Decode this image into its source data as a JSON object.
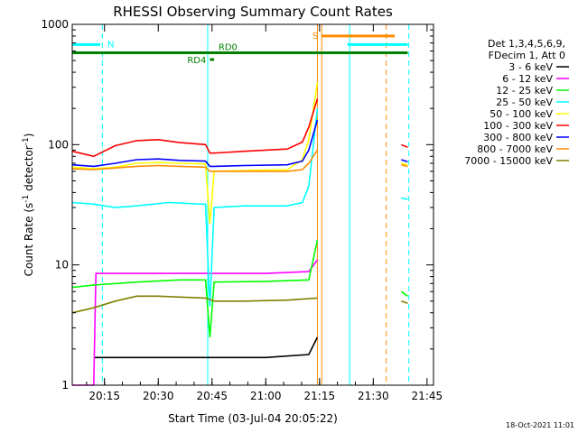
{
  "chart_data": {
    "type": "line",
    "title": "RHESSI Observing Summary Count Rates",
    "xlabel": "Start Time (03-Jul-04 20:05:22)",
    "ylabel_main": "Count Rate (s",
    "ylabel_exp1": "-1",
    "ylabel_mid": " detector",
    "ylabel_exp2": "-1",
    "ylabel_end": ")",
    "y_scale": "log",
    "ylim": [
      1,
      1000
    ],
    "xlim_minutes": [
      20.1,
      21.78
    ],
    "x_ticks": [
      {
        "label": "20:15",
        "t": 20.25
      },
      {
        "label": "20:30",
        "t": 20.5
      },
      {
        "label": "20:45",
        "t": 20.75
      },
      {
        "label": "21:00",
        "t": 21.0
      },
      {
        "label": "21:15",
        "t": 21.25
      },
      {
        "label": "21:30",
        "t": 21.5
      },
      {
        "label": "21:45",
        "t": 21.75
      }
    ],
    "y_ticks": [
      {
        "label": "1",
        "v": 1
      },
      {
        "label": "10",
        "v": 10
      },
      {
        "label": "100",
        "v": 100
      },
      {
        "label": "1000",
        "v": 1000
      }
    ],
    "legend_header": [
      "Det 1,3,4,5,6,9,",
      "FDecim 1, Att 0"
    ],
    "legend_placement": "right",
    "series": [
      {
        "name": "3 - 6 keV",
        "color": "#000000",
        "points": [
          [
            20.2,
            1.7
          ],
          [
            20.4,
            1.7
          ],
          [
            20.6,
            1.7
          ],
          [
            20.8,
            1.7
          ],
          [
            21.0,
            1.7
          ],
          [
            21.2,
            1.8
          ],
          [
            21.24,
            2.5
          ]
        ],
        "after_gap": [
          [
            21.63,
            null
          ]
        ]
      },
      {
        "name": "6 - 12 keV",
        "color": "#ff00ff",
        "points": [
          [
            20.1,
            1
          ],
          [
            20.18,
            1
          ],
          [
            20.2,
            1
          ],
          [
            20.21,
            8.5
          ],
          [
            20.4,
            8.5
          ],
          [
            20.6,
            8.5
          ],
          [
            20.8,
            8.5
          ],
          [
            21.0,
            8.5
          ],
          [
            21.2,
            8.8
          ],
          [
            21.24,
            11
          ]
        ],
        "after_gap": [
          [
            21.63,
            null
          ]
        ]
      },
      {
        "name": "12 - 25 keV",
        "color": "#00ff00",
        "points": [
          [
            20.1,
            6.5
          ],
          [
            20.2,
            6.8
          ],
          [
            20.4,
            7.2
          ],
          [
            20.6,
            7.5
          ],
          [
            20.72,
            7.5
          ],
          [
            20.74,
            2.5
          ],
          [
            20.76,
            7.2
          ],
          [
            21.0,
            7.3
          ],
          [
            21.2,
            7.5
          ],
          [
            21.24,
            16
          ]
        ],
        "after_gap": [
          [
            21.63,
            6.0
          ],
          [
            21.66,
            5.5
          ]
        ]
      },
      {
        "name": "25 - 50 keV",
        "color": "#00ffff",
        "points": [
          [
            20.1,
            33
          ],
          [
            20.2,
            32
          ],
          [
            20.3,
            30
          ],
          [
            20.4,
            31
          ],
          [
            20.55,
            33
          ],
          [
            20.7,
            32
          ],
          [
            20.72,
            32
          ],
          [
            20.74,
            4.5
          ],
          [
            20.76,
            30
          ],
          [
            20.9,
            31
          ],
          [
            21.1,
            31
          ],
          [
            21.17,
            33
          ],
          [
            21.2,
            45
          ],
          [
            21.24,
            200
          ]
        ],
        "after_gap": [
          [
            21.63,
            36
          ],
          [
            21.66,
            35
          ]
        ]
      },
      {
        "name": "50 - 100 keV",
        "color": "#ffff00",
        "points": [
          [
            20.1,
            65
          ],
          [
            20.2,
            63
          ],
          [
            20.3,
            65
          ],
          [
            20.4,
            70
          ],
          [
            20.5,
            71
          ],
          [
            20.6,
            70
          ],
          [
            20.72,
            69
          ],
          [
            20.74,
            22
          ],
          [
            20.76,
            60
          ],
          [
            20.9,
            61
          ],
          [
            21.1,
            62
          ],
          [
            21.17,
            75
          ],
          [
            21.2,
            110
          ],
          [
            21.24,
            330
          ]
        ],
        "after_gap": [
          [
            21.63,
            70
          ],
          [
            21.66,
            68
          ]
        ]
      },
      {
        "name": "100 - 300 keV",
        "color": "#ff0000",
        "points": [
          [
            20.1,
            88
          ],
          [
            20.2,
            80
          ],
          [
            20.3,
            98
          ],
          [
            20.4,
            108
          ],
          [
            20.5,
            110
          ],
          [
            20.6,
            104
          ],
          [
            20.72,
            100
          ],
          [
            20.74,
            85
          ],
          [
            20.76,
            85
          ],
          [
            20.9,
            88
          ],
          [
            21.1,
            92
          ],
          [
            21.17,
            105
          ],
          [
            21.2,
            140
          ],
          [
            21.24,
            240
          ]
        ],
        "after_gap": [
          [
            21.63,
            100
          ],
          [
            21.66,
            95
          ]
        ]
      },
      {
        "name": "300 - 800 keV",
        "color": "#0000ff",
        "points": [
          [
            20.1,
            68
          ],
          [
            20.2,
            66
          ],
          [
            20.3,
            70
          ],
          [
            20.4,
            75
          ],
          [
            20.5,
            76
          ],
          [
            20.6,
            74
          ],
          [
            20.72,
            73
          ],
          [
            20.74,
            66
          ],
          [
            20.76,
            66
          ],
          [
            20.9,
            67
          ],
          [
            21.1,
            68
          ],
          [
            21.17,
            73
          ],
          [
            21.2,
            90
          ],
          [
            21.24,
            160
          ]
        ],
        "after_gap": [
          [
            21.63,
            75
          ],
          [
            21.66,
            72
          ]
        ]
      },
      {
        "name": "800 - 7000 keV",
        "color": "#ff8c00",
        "points": [
          [
            20.1,
            63
          ],
          [
            20.2,
            62
          ],
          [
            20.3,
            64
          ],
          [
            20.4,
            66
          ],
          [
            20.5,
            67
          ],
          [
            20.6,
            66
          ],
          [
            20.72,
            65
          ],
          [
            20.74,
            60
          ],
          [
            20.76,
            60
          ],
          [
            20.9,
            60
          ],
          [
            21.1,
            60
          ],
          [
            21.17,
            62
          ],
          [
            21.2,
            70
          ],
          [
            21.24,
            90
          ]
        ],
        "after_gap": [
          [
            21.63,
            68
          ],
          [
            21.66,
            66
          ]
        ]
      },
      {
        "name": "7000 - 15000 keV",
        "color": "#808000",
        "points": [
          [
            20.1,
            4.0
          ],
          [
            20.2,
            4.4
          ],
          [
            20.3,
            5.0
          ],
          [
            20.4,
            5.5
          ],
          [
            20.5,
            5.5
          ],
          [
            20.6,
            5.4
          ],
          [
            20.72,
            5.3
          ],
          [
            20.76,
            5.0
          ],
          [
            20.9,
            5.0
          ],
          [
            21.1,
            5.1
          ],
          [
            21.24,
            5.3
          ]
        ],
        "after_gap": [
          [
            21.63,
            5.0
          ],
          [
            21.66,
            4.8
          ]
        ]
      }
    ],
    "flags": [
      {
        "label": "N",
        "color": "#00ffff",
        "t0": 20.1,
        "t1": 20.23,
        "level": 680
      },
      {
        "label": "N",
        "color": "#00ffff",
        "t0": 21.38,
        "t1": 21.66,
        "level": 680,
        "show_label": false
      },
      {
        "label": "RD0",
        "color": "#008000",
        "t0": 20.1,
        "t1": 21.66,
        "level": 580
      },
      {
        "label": "RD4",
        "color": "#008000",
        "t0": 20.74,
        "t1": 20.76,
        "level": 510
      },
      {
        "label": "S",
        "color": "#ff8c00",
        "t0": 21.26,
        "t1": 21.6,
        "level": 800
      }
    ],
    "vlines": [
      {
        "t": 20.24,
        "color": "#00ffff",
        "style": "dashed"
      },
      {
        "t": 20.73,
        "color": "#00ffff",
        "style": "solid"
      },
      {
        "t": 21.24,
        "color": "#ff8c00",
        "style": "solid"
      },
      {
        "t": 21.26,
        "color": "#ff8c00",
        "style": "solid"
      },
      {
        "t": 21.39,
        "color": "#00ffff",
        "style": "solid"
      },
      {
        "t": 21.56,
        "color": "#ff8c00",
        "style": "dashed"
      },
      {
        "t": 21.665,
        "color": "#00ffff",
        "style": "dashed"
      }
    ],
    "timestamp": "18-Oct-2021 11:01"
  }
}
